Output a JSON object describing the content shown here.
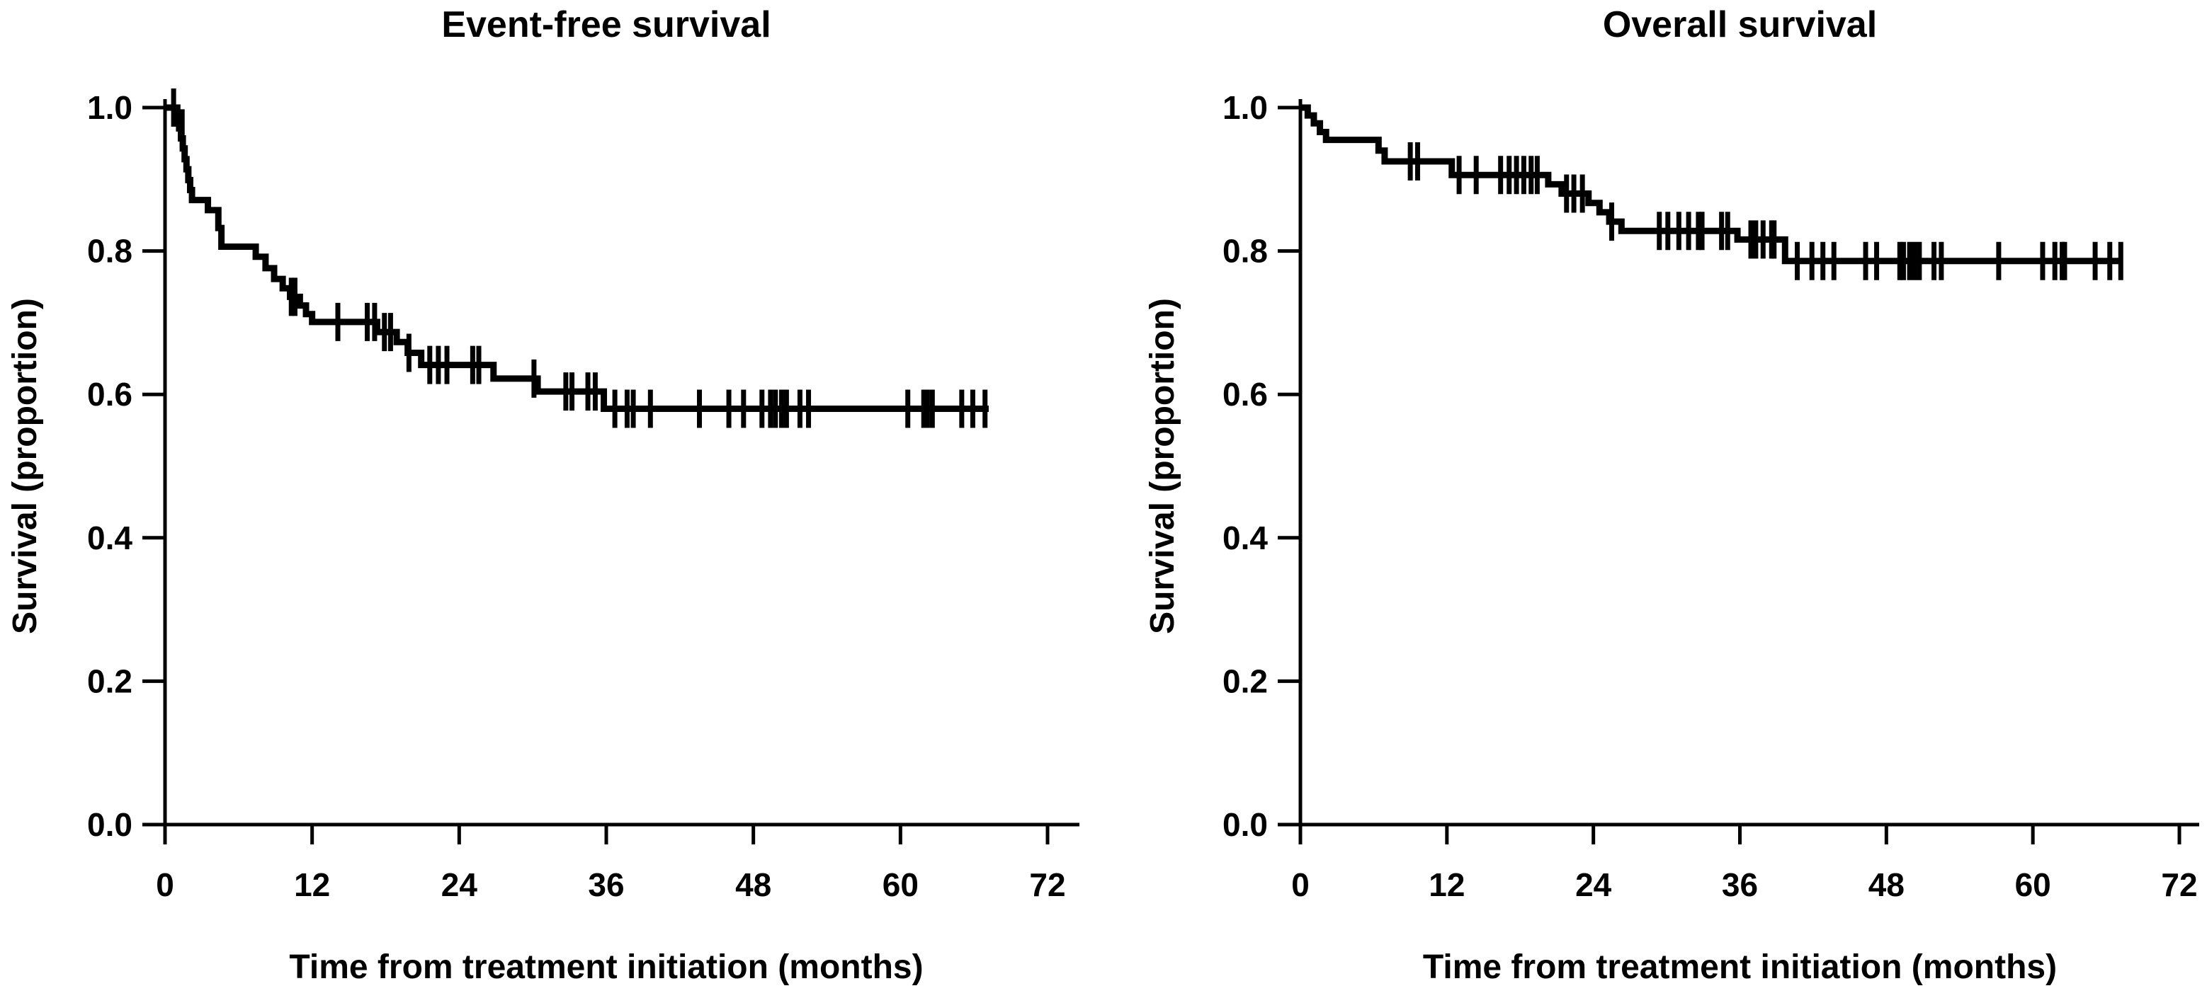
{
  "figure": {
    "background": "#ffffff",
    "ink": "#000000",
    "description": "Two Kaplan-Meier survival curves side by side"
  },
  "chart_data": [
    {
      "type": "line",
      "subtype": "kaplan-meier-step",
      "title": "Event-free survival",
      "xlabel": "Time from treatment initiation (months)",
      "ylabel": "Survival (proportion)",
      "xlim": [
        0,
        72
      ],
      "ylim": [
        0.0,
        1.0
      ],
      "grid": false,
      "legend": "none",
      "x_ticks": [
        0,
        12,
        24,
        36,
        48,
        60,
        72
      ],
      "y_ticks": [
        {
          "v": 1.0,
          "label": "1.0"
        },
        {
          "v": 0.8,
          "label": "0.8"
        },
        {
          "v": 0.6,
          "label": "0.6"
        },
        {
          "v": 0.4,
          "label": "0.4"
        },
        {
          "v": 0.2,
          "label": "0.2"
        },
        {
          "v": 0.0,
          "label": "0.0"
        }
      ],
      "steps": [
        [
          0,
          1.0
        ],
        [
          1.0,
          0.986
        ],
        [
          1.15,
          0.971
        ],
        [
          1.3,
          0.957
        ],
        [
          1.45,
          0.943
        ],
        [
          1.6,
          0.928
        ],
        [
          1.75,
          0.914
        ],
        [
          1.9,
          0.899
        ],
        [
          2.05,
          0.885
        ],
        [
          2.2,
          0.871
        ],
        [
          3.5,
          0.857
        ],
        [
          4.35,
          0.832
        ],
        [
          4.6,
          0.806
        ],
        [
          7.4,
          0.792
        ],
        [
          8.2,
          0.776
        ],
        [
          8.9,
          0.761
        ],
        [
          9.6,
          0.748
        ],
        [
          10.2,
          0.736
        ],
        [
          11.0,
          0.724
        ],
        [
          11.5,
          0.712
        ],
        [
          12.0,
          0.701
        ],
        [
          17.3,
          0.687
        ],
        [
          18.9,
          0.673
        ],
        [
          19.8,
          0.658
        ],
        [
          20.9,
          0.641
        ],
        [
          26.8,
          0.622
        ],
        [
          30.4,
          0.604
        ],
        [
          35.8,
          0.58
        ]
      ],
      "end_time": 67.2,
      "censors": [
        [
          0.7,
          1.0
        ],
        [
          1.4,
          0.971
        ],
        [
          10.3,
          0.736
        ],
        [
          10.6,
          0.736
        ],
        [
          14.1,
          0.701
        ],
        [
          16.5,
          0.701
        ],
        [
          17.1,
          0.701
        ],
        [
          17.9,
          0.687
        ],
        [
          18.4,
          0.687
        ],
        [
          19.9,
          0.658
        ],
        [
          21.6,
          0.641
        ],
        [
          22.3,
          0.641
        ],
        [
          23.0,
          0.641
        ],
        [
          25.1,
          0.641
        ],
        [
          25.6,
          0.641
        ],
        [
          30.1,
          0.622
        ],
        [
          32.7,
          0.604
        ],
        [
          33.2,
          0.604
        ],
        [
          34.5,
          0.604
        ],
        [
          35.1,
          0.604
        ],
        [
          36.7,
          0.58
        ],
        [
          37.7,
          0.58
        ],
        [
          38.2,
          0.58
        ],
        [
          39.6,
          0.58
        ],
        [
          43.6,
          0.58
        ],
        [
          46.0,
          0.58
        ],
        [
          47.2,
          0.58
        ],
        [
          48.7,
          0.58
        ],
        [
          49.4,
          0.58
        ],
        [
          49.8,
          0.58
        ],
        [
          50.3,
          0.58
        ],
        [
          50.7,
          0.58
        ],
        [
          51.8,
          0.58
        ],
        [
          52.5,
          0.58
        ],
        [
          60.6,
          0.58
        ],
        [
          61.9,
          0.58
        ],
        [
          62.2,
          0.58
        ],
        [
          62.6,
          0.58
        ],
        [
          65.0,
          0.58
        ],
        [
          65.9,
          0.58
        ],
        [
          66.9,
          0.58
        ]
      ]
    },
    {
      "type": "line",
      "subtype": "kaplan-meier-step",
      "title": "Overall survival",
      "xlabel": "Time from treatment initiation (months)",
      "ylabel": "Survival (proportion)",
      "xlim": [
        0,
        72
      ],
      "ylim": [
        0.0,
        1.0
      ],
      "grid": false,
      "legend": "none",
      "x_ticks": [
        0,
        12,
        24,
        36,
        48,
        60,
        72
      ],
      "y_ticks": [
        {
          "v": 1.0,
          "label": "1.0"
        },
        {
          "v": 0.8,
          "label": "0.8"
        },
        {
          "v": 0.6,
          "label": "0.6"
        },
        {
          "v": 0.4,
          "label": "0.4"
        },
        {
          "v": 0.2,
          "label": "0.2"
        },
        {
          "v": 0.0,
          "label": "0.0"
        }
      ],
      "steps": [
        [
          0,
          1.0
        ],
        [
          0.6,
          0.989
        ],
        [
          1.1,
          0.978
        ],
        [
          1.6,
          0.966
        ],
        [
          2.1,
          0.955
        ],
        [
          6.4,
          0.94
        ],
        [
          6.9,
          0.925
        ],
        [
          12.4,
          0.906
        ],
        [
          20.3,
          0.893
        ],
        [
          21.4,
          0.88
        ],
        [
          23.6,
          0.867
        ],
        [
          24.5,
          0.854
        ],
        [
          25.3,
          0.841
        ],
        [
          26.3,
          0.828
        ],
        [
          35.8,
          0.816
        ],
        [
          39.7,
          0.786
        ]
      ],
      "end_time": 67.3,
      "censors": [
        [
          9.0,
          0.925
        ],
        [
          9.6,
          0.925
        ],
        [
          13.0,
          0.906
        ],
        [
          14.4,
          0.906
        ],
        [
          16.4,
          0.906
        ],
        [
          17.1,
          0.906
        ],
        [
          17.7,
          0.906
        ],
        [
          18.3,
          0.906
        ],
        [
          18.9,
          0.906
        ],
        [
          19.4,
          0.906
        ],
        [
          21.8,
          0.88
        ],
        [
          22.4,
          0.88
        ],
        [
          23.1,
          0.88
        ],
        [
          25.5,
          0.841
        ],
        [
          29.4,
          0.828
        ],
        [
          30.1,
          0.828
        ],
        [
          31.0,
          0.828
        ],
        [
          31.8,
          0.828
        ],
        [
          32.6,
          0.828
        ],
        [
          32.9,
          0.828
        ],
        [
          34.5,
          0.828
        ],
        [
          35.0,
          0.828
        ],
        [
          36.9,
          0.816
        ],
        [
          37.3,
          0.816
        ],
        [
          37.9,
          0.816
        ],
        [
          38.6,
          0.816
        ],
        [
          38.8,
          0.816
        ],
        [
          40.7,
          0.786
        ],
        [
          41.9,
          0.786
        ],
        [
          42.8,
          0.786
        ],
        [
          43.7,
          0.786
        ],
        [
          46.3,
          0.786
        ],
        [
          47.2,
          0.786
        ],
        [
          49.1,
          0.786
        ],
        [
          49.4,
          0.786
        ],
        [
          49.9,
          0.786
        ],
        [
          50.3,
          0.786
        ],
        [
          50.7,
          0.786
        ],
        [
          51.9,
          0.786
        ],
        [
          52.5,
          0.786
        ],
        [
          57.2,
          0.786
        ],
        [
          60.8,
          0.786
        ],
        [
          61.8,
          0.786
        ],
        [
          62.4,
          0.786
        ],
        [
          62.6,
          0.786
        ],
        [
          65.1,
          0.786
        ],
        [
          66.3,
          0.786
        ],
        [
          67.2,
          0.786
        ]
      ]
    }
  ]
}
